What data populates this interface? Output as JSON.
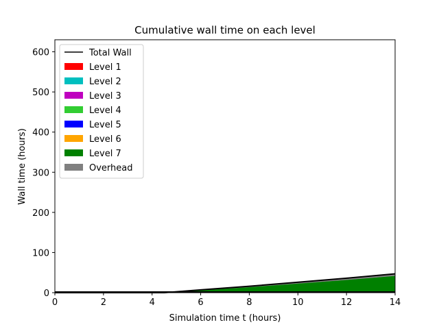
{
  "chart_data": {
    "type": "area",
    "title": "Cumulative wall time on each level",
    "xlabel": "Simulation time t (hours)",
    "ylabel": "Wall time (hours)",
    "xlim": [
      0,
      14
    ],
    "ylim": [
      0,
      630
    ],
    "xticks": [
      0,
      2,
      4,
      6,
      8,
      10,
      12,
      14
    ],
    "yticks": [
      0,
      100,
      200,
      300,
      400,
      500,
      600
    ],
    "grid": false,
    "legend_position": "top-left",
    "x": [
      0,
      4.5,
      6,
      8,
      10,
      12,
      14
    ],
    "series": [
      {
        "name": "Level 1",
        "color": "#ff0000",
        "values": [
          0,
          0,
          0,
          0,
          0,
          0,
          0
        ]
      },
      {
        "name": "Level 2",
        "color": "#00bfbf",
        "values": [
          0,
          0,
          0,
          0,
          0,
          0,
          0
        ]
      },
      {
        "name": "Level 3",
        "color": "#bf00bf",
        "values": [
          0,
          0,
          0,
          0,
          0,
          0,
          0
        ]
      },
      {
        "name": "Level 4",
        "color": "#32cd32",
        "values": [
          0,
          0,
          0,
          0,
          0,
          0,
          0
        ]
      },
      {
        "name": "Level 5",
        "color": "#0000ff",
        "values": [
          0,
          0,
          0,
          0,
          0,
          0,
          0
        ]
      },
      {
        "name": "Level 6",
        "color": "#ffa500",
        "values": [
          0,
          0,
          0,
          0,
          0,
          0,
          0
        ]
      },
      {
        "name": "Level 7",
        "color": "#008000",
        "values": [
          0,
          0,
          6,
          14,
          23,
          32,
          42
        ]
      },
      {
        "name": "Overhead",
        "color": "#808080",
        "values": [
          0,
          0,
          1,
          2,
          3,
          4,
          5
        ]
      }
    ],
    "total_wall": {
      "name": "Total Wall",
      "color": "#000000",
      "values": [
        0,
        0,
        7,
        16,
        26,
        36,
        47
      ]
    }
  }
}
